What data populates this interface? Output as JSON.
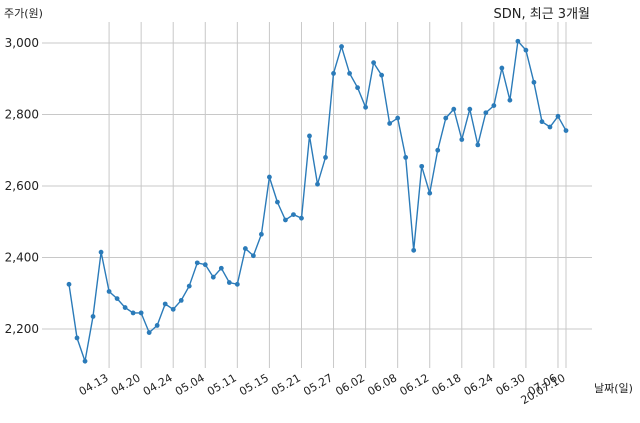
{
  "chart_data": {
    "type": "line",
    "title": "SDN, 최근 3개월",
    "ylabel": "주가(원)",
    "xlabel": "날짜(일)",
    "ylim": [
      2070,
      3070
    ],
    "yticks": [
      2200,
      2400,
      2600,
      2800,
      3000
    ],
    "ytick_labels": [
      "2,200",
      "2,400",
      "2,600",
      "2,800",
      "3,000"
    ],
    "xtick_labels": [
      "04.13",
      "04.20",
      "04.24",
      "05.04",
      "05.11",
      "05.15",
      "05.21",
      "05.27",
      "06.02",
      "06.08",
      "06.12",
      "06.18",
      "06.24",
      "06.30",
      "07.06",
      "20.07.10"
    ],
    "xtick_positions": [
      5,
      9,
      13,
      17,
      21,
      25,
      29,
      33,
      37,
      41,
      45,
      49,
      53,
      57,
      61,
      62
    ],
    "grid": true,
    "series": [
      {
        "color": "#2b7bb9",
        "values": [
          2325,
          2175,
          2110,
          2235,
          2415,
          2305,
          2285,
          2260,
          2245,
          2245,
          2190,
          2210,
          2270,
          2255,
          2280,
          2320,
          2385,
          2380,
          2345,
          2370,
          2330,
          2325,
          2425,
          2405,
          2465,
          2625,
          2555,
          2505,
          2520,
          2510,
          2740,
          2605,
          2680,
          2915,
          2990,
          2915,
          2875,
          2820,
          2945,
          2910,
          2775,
          2790,
          2680,
          2420,
          2655,
          2580,
          2700,
          2790,
          2815,
          2730,
          2815,
          2715,
          2805,
          2825,
          2930,
          2840,
          3005,
          2980,
          2890,
          2780,
          2765,
          2795,
          2755
        ]
      }
    ]
  }
}
